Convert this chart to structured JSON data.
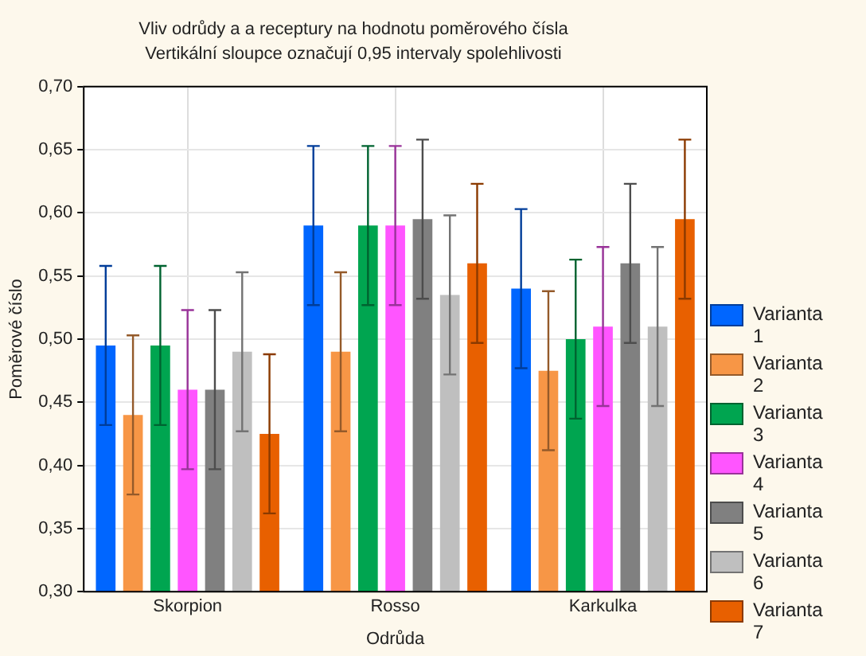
{
  "chart_data": {
    "type": "bar",
    "title": "Vliv odrůdy a a receptury na hodnotu poměrového čísla",
    "subtitle": "Vertikální sloupce označují 0,95 intervaly spolehlivosti",
    "xlabel": "Odrůda",
    "ylabel": "Poměrové číslo",
    "categories": [
      "Skorpion",
      "Rosso",
      "Karkulka"
    ],
    "series": [
      {
        "name": "Varianta 1",
        "color": "#0066ff",
        "values": [
          0.495,
          0.59,
          0.54
        ],
        "errors": [
          0.063,
          0.063,
          0.063
        ]
      },
      {
        "name": "Varianta 2",
        "color": "#f79646",
        "values": [
          0.44,
          0.49,
          0.475
        ],
        "errors": [
          0.063,
          0.063,
          0.063
        ]
      },
      {
        "name": "Varianta 3",
        "color": "#00a550",
        "values": [
          0.495,
          0.59,
          0.5
        ],
        "errors": [
          0.063,
          0.063,
          0.063
        ]
      },
      {
        "name": "Varianta 4",
        "color": "#ff55ff",
        "values": [
          0.46,
          0.59,
          0.51
        ],
        "errors": [
          0.063,
          0.063,
          0.063
        ]
      },
      {
        "name": "Varianta 5",
        "color": "#808080",
        "values": [
          0.46,
          0.595,
          0.56
        ],
        "errors": [
          0.063,
          0.063,
          0.063
        ]
      },
      {
        "name": "Varianta 6",
        "color": "#bfbfbf",
        "values": [
          0.49,
          0.535,
          0.51
        ],
        "errors": [
          0.063,
          0.063,
          0.063
        ]
      },
      {
        "name": "Varianta 7",
        "color": "#e86000",
        "values": [
          0.425,
          0.56,
          0.595
        ],
        "errors": [
          0.063,
          0.063,
          0.063
        ]
      }
    ],
    "ylim": [
      0.3,
      0.7
    ],
    "yticks": [
      {
        "value": 0.3,
        "label": "0,30"
      },
      {
        "value": 0.35,
        "label": "0,35"
      },
      {
        "value": 0.4,
        "label": "0,40"
      },
      {
        "value": 0.45,
        "label": "0,45"
      },
      {
        "value": 0.5,
        "label": "0,50"
      },
      {
        "value": 0.55,
        "label": "0,55"
      },
      {
        "value": 0.6,
        "label": "0,60"
      },
      {
        "value": 0.65,
        "label": "0,65"
      },
      {
        "value": 0.7,
        "label": "0,70"
      }
    ],
    "grid": true,
    "legend": "right"
  }
}
